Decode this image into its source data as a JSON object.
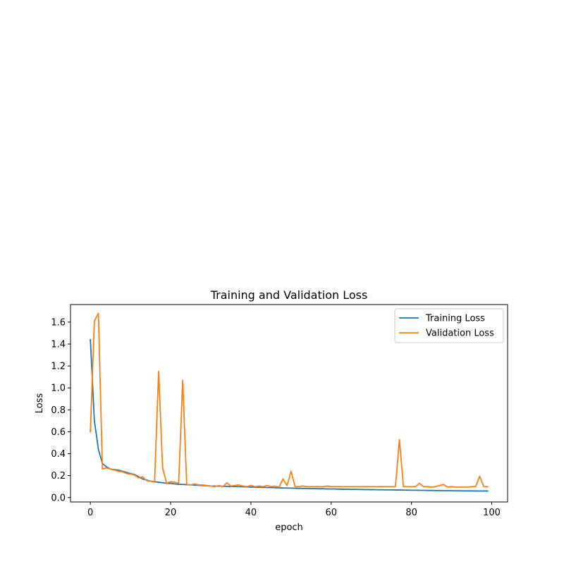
{
  "chart_data": {
    "type": "line",
    "title": "Training and Validation Loss",
    "xlabel": "epoch",
    "ylabel": "Loss",
    "xlim": [
      -4.95,
      103.95
    ],
    "ylim": [
      -0.04,
      1.76
    ],
    "xticks": [
      0,
      20,
      40,
      60,
      80,
      100
    ],
    "yticks": [
      0.0,
      0.2,
      0.4,
      0.6,
      0.8,
      1.0,
      1.2,
      1.4,
      1.6
    ],
    "grid": false,
    "legend_position": "top-right",
    "x": [
      0,
      1,
      2,
      3,
      4,
      5,
      6,
      7,
      8,
      9,
      10,
      11,
      12,
      13,
      14,
      15,
      16,
      17,
      18,
      19,
      20,
      21,
      22,
      23,
      24,
      25,
      26,
      27,
      28,
      29,
      30,
      31,
      32,
      33,
      34,
      35,
      36,
      37,
      38,
      39,
      40,
      41,
      42,
      43,
      44,
      45,
      46,
      47,
      48,
      49,
      50,
      51,
      52,
      53,
      54,
      55,
      56,
      57,
      58,
      59,
      60,
      61,
      62,
      63,
      64,
      65,
      66,
      67,
      68,
      69,
      70,
      71,
      72,
      73,
      74,
      75,
      76,
      77,
      78,
      79,
      80,
      81,
      82,
      83,
      84,
      85,
      86,
      87,
      88,
      89,
      90,
      91,
      92,
      93,
      94,
      95,
      96,
      97,
      98,
      99
    ],
    "series": [
      {
        "name": "Training Loss",
        "color": "#1f77b4",
        "values": [
          1.44,
          0.7,
          0.44,
          0.31,
          0.28,
          0.26,
          0.255,
          0.25,
          0.24,
          0.23,
          0.22,
          0.21,
          0.19,
          0.17,
          0.16,
          0.15,
          0.145,
          0.14,
          0.135,
          0.13,
          0.13,
          0.125,
          0.12,
          0.12,
          0.118,
          0.116,
          0.114,
          0.112,
          0.11,
          0.108,
          0.106,
          0.105,
          0.104,
          0.103,
          0.102,
          0.101,
          0.1,
          0.099,
          0.098,
          0.097,
          0.096,
          0.095,
          0.094,
          0.093,
          0.092,
          0.091,
          0.09,
          0.089,
          0.088,
          0.087,
          0.086,
          0.085,
          0.084,
          0.083,
          0.082,
          0.082,
          0.081,
          0.08,
          0.08,
          0.079,
          0.078,
          0.078,
          0.077,
          0.076,
          0.076,
          0.075,
          0.075,
          0.074,
          0.073,
          0.073,
          0.072,
          0.072,
          0.071,
          0.071,
          0.07,
          0.07,
          0.069,
          0.069,
          0.068,
          0.068,
          0.067,
          0.067,
          0.066,
          0.066,
          0.065,
          0.065,
          0.064,
          0.064,
          0.063,
          0.063,
          0.063,
          0.062,
          0.062,
          0.061,
          0.061,
          0.061,
          0.06,
          0.06,
          0.06,
          0.06
        ]
      },
      {
        "name": "Validation Loss",
        "color": "#ff7f0e",
        "values": [
          0.6,
          1.61,
          1.68,
          0.26,
          0.27,
          0.26,
          0.25,
          0.24,
          0.235,
          0.22,
          0.215,
          0.205,
          0.18,
          0.19,
          0.155,
          0.15,
          0.14,
          1.15,
          0.27,
          0.13,
          0.145,
          0.14,
          0.13,
          1.07,
          0.12,
          0.115,
          0.125,
          0.115,
          0.115,
          0.11,
          0.105,
          0.1,
          0.11,
          0.1,
          0.135,
          0.105,
          0.11,
          0.115,
          0.105,
          0.1,
          0.11,
          0.1,
          0.105,
          0.1,
          0.11,
          0.1,
          0.105,
          0.095,
          0.17,
          0.11,
          0.24,
          0.1,
          0.1,
          0.105,
          0.1,
          0.1,
          0.1,
          0.1,
          0.1,
          0.105,
          0.1,
          0.1,
          0.1,
          0.1,
          0.1,
          0.1,
          0.1,
          0.1,
          0.1,
          0.1,
          0.1,
          0.1,
          0.1,
          0.1,
          0.1,
          0.1,
          0.1,
          0.53,
          0.1,
          0.1,
          0.1,
          0.1,
          0.13,
          0.1,
          0.1,
          0.095,
          0.1,
          0.11,
          0.12,
          0.095,
          0.1,
          0.095,
          0.095,
          0.095,
          0.095,
          0.1,
          0.1,
          0.195,
          0.1,
          0.1
        ]
      }
    ]
  }
}
